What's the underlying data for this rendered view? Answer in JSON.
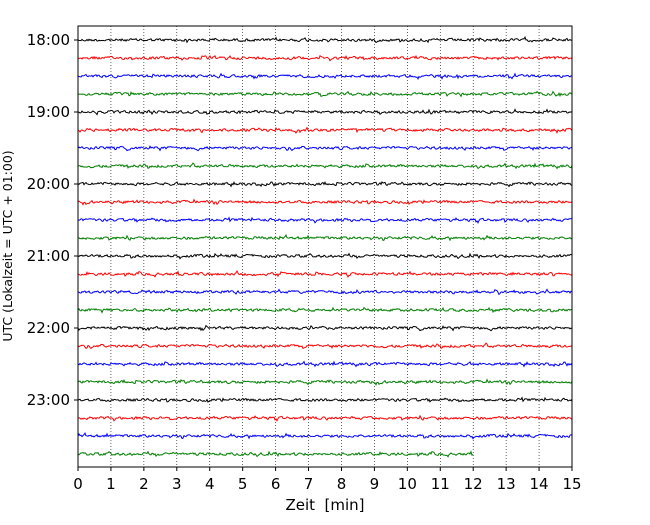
{
  "chart_data": {
    "type": "line",
    "title": "",
    "xlabel": "Zeit  [min]",
    "ylabel": "UTC (Lokalzeit = UTC + 01:00)",
    "xlim": [
      0,
      15
    ],
    "x_ticks": [
      "0",
      "1",
      "2",
      "3",
      "4",
      "5",
      "6",
      "7",
      "8",
      "9",
      "10",
      "11",
      "12",
      "13",
      "14",
      "15"
    ],
    "y_ticks": [
      "18:00",
      "19:00",
      "20:00",
      "21:00",
      "22:00",
      "23:00"
    ],
    "grid": "vertical-dotted",
    "trace_colors": [
      "#000000",
      "#ff0000",
      "#0000ff",
      "#008000"
    ],
    "traces": [
      {
        "start": "18:00",
        "x_end": 15,
        "color": "#000000"
      },
      {
        "start": "18:15",
        "x_end": 15,
        "color": "#ff0000"
      },
      {
        "start": "18:30",
        "x_end": 15,
        "color": "#0000ff"
      },
      {
        "start": "18:45",
        "x_end": 15,
        "color": "#008000"
      },
      {
        "start": "19:00",
        "x_end": 15,
        "color": "#000000"
      },
      {
        "start": "19:15",
        "x_end": 15,
        "color": "#ff0000"
      },
      {
        "start": "19:30",
        "x_end": 15,
        "color": "#0000ff"
      },
      {
        "start": "19:45",
        "x_end": 15,
        "color": "#008000"
      },
      {
        "start": "20:00",
        "x_end": 15,
        "color": "#000000"
      },
      {
        "start": "20:15",
        "x_end": 15,
        "color": "#ff0000"
      },
      {
        "start": "20:30",
        "x_end": 15,
        "color": "#0000ff"
      },
      {
        "start": "20:45",
        "x_end": 15,
        "color": "#008000"
      },
      {
        "start": "21:00",
        "x_end": 15,
        "color": "#000000"
      },
      {
        "start": "21:15",
        "x_end": 15,
        "color": "#ff0000"
      },
      {
        "start": "21:30",
        "x_end": 15,
        "color": "#0000ff"
      },
      {
        "start": "21:45",
        "x_end": 15,
        "color": "#008000"
      },
      {
        "start": "22:00",
        "x_end": 15,
        "color": "#000000"
      },
      {
        "start": "22:15",
        "x_end": 15,
        "color": "#ff0000"
      },
      {
        "start": "22:30",
        "x_end": 15,
        "color": "#0000ff"
      },
      {
        "start": "22:45",
        "x_end": 15,
        "color": "#008000"
      },
      {
        "start": "23:00",
        "x_end": 15,
        "color": "#000000"
      },
      {
        "start": "23:15",
        "x_end": 15,
        "color": "#ff0000"
      },
      {
        "start": "23:30",
        "x_end": 15,
        "color": "#0000ff"
      },
      {
        "start": "23:45",
        "x_end": 12,
        "color": "#008000"
      }
    ]
  }
}
